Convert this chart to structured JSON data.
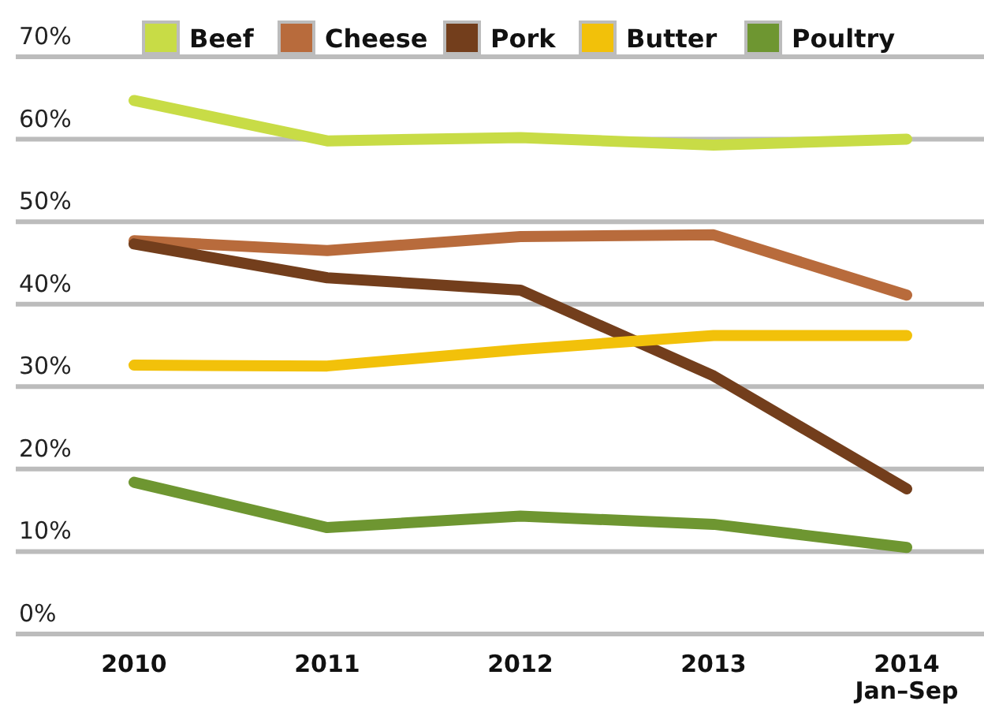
{
  "chart_data": {
    "type": "line",
    "categories": [
      "2010",
      "2011",
      "2012",
      "2013",
      "2014\nJan–Sep"
    ],
    "series": [
      {
        "name": "Beef",
        "color": "#c8dc46",
        "values": [
          64.7,
          59.8,
          60.2,
          59.3,
          60
        ]
      },
      {
        "name": "Cheese",
        "color": "#b86b3c",
        "values": [
          47.7,
          46.5,
          48.2,
          48.4,
          41.1
        ]
      },
      {
        "name": "Pork",
        "color": "#733e1c",
        "values": [
          47.3,
          43.2,
          41.7,
          31.3,
          17.6
        ]
      },
      {
        "name": "Butter",
        "color": "#f2c10a",
        "values": [
          32.6,
          32.5,
          34.5,
          36.2,
          36.2
        ]
      },
      {
        "name": "Poultry",
        "color": "#6e9631",
        "values": [
          18.4,
          12.9,
          14.3,
          13.3,
          10.5
        ]
      }
    ],
    "ylim": [
      0,
      70
    ],
    "yticks": [
      {
        "value": 0,
        "label": "0%"
      },
      {
        "value": 10,
        "label": "10%"
      },
      {
        "value": 20,
        "label": "20%"
      },
      {
        "value": 30,
        "label": "30%"
      },
      {
        "value": 40,
        "label": "40%"
      },
      {
        "value": 50,
        "label": "50%"
      },
      {
        "value": 60,
        "label": "60%"
      },
      {
        "value": 70,
        "label": "70%"
      }
    ],
    "grid": "y",
    "legend": "top",
    "marker": "none",
    "line_style": "solid"
  }
}
